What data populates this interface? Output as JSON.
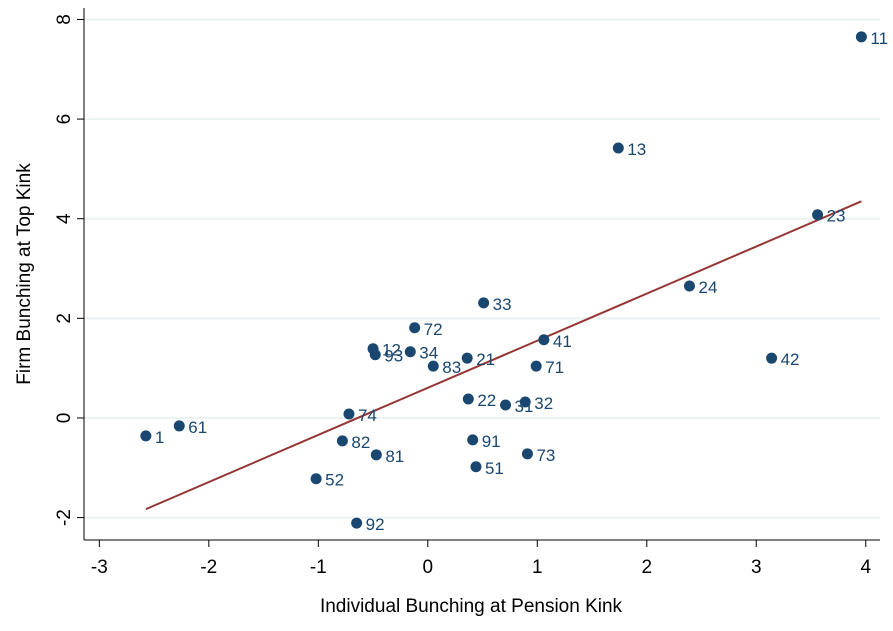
{
  "chart_data": {
    "type": "scatter",
    "x_label": "Individual Bunching at Pension Kink",
    "y_label": "Firm Bunching at Top Kink",
    "labels": [
      "1",
      "61",
      "74",
      "82",
      "81",
      "52",
      "92",
      "12",
      "93",
      "34",
      "72",
      "83",
      "21",
      "33",
      "22",
      "31",
      "32",
      "91",
      "51",
      "73",
      "41",
      "71",
      "13",
      "24",
      "42",
      "23",
      "11"
    ],
    "x": [
      -2.575,
      -2.27,
      -0.72,
      -0.78,
      -0.47,
      -1.02,
      -0.65,
      -0.5,
      -0.48,
      -0.16,
      -0.12,
      0.05,
      0.36,
      0.51,
      0.37,
      0.71,
      0.89,
      0.41,
      0.44,
      0.91,
      1.06,
      0.99,
      1.74,
      2.39,
      3.14,
      3.56,
      3.96
    ],
    "y": [
      -0.36,
      -0.16,
      0.08,
      -0.46,
      -0.74,
      -1.22,
      -2.11,
      1.39,
      1.27,
      1.33,
      1.81,
      1.04,
      1.2,
      2.31,
      0.38,
      0.26,
      0.32,
      -0.44,
      -0.98,
      -0.72,
      1.57,
      1.04,
      5.42,
      2.65,
      1.2,
      4.08,
      7.65
    ],
    "color": "#1a476f",
    "fit_line": {
      "x": [
        -2.575,
        3.96
      ],
      "y": [
        -1.83,
        4.35
      ],
      "color": "#943634"
    },
    "xlim": [
      -3.14,
      4.13
    ],
    "ylim": [
      -2.45,
      8.23
    ],
    "xticks": [
      -3,
      -2,
      -1,
      0,
      1,
      2,
      3,
      4
    ],
    "yticks": [
      -2,
      0,
      2,
      4,
      6,
      8
    ],
    "grid": true
  }
}
